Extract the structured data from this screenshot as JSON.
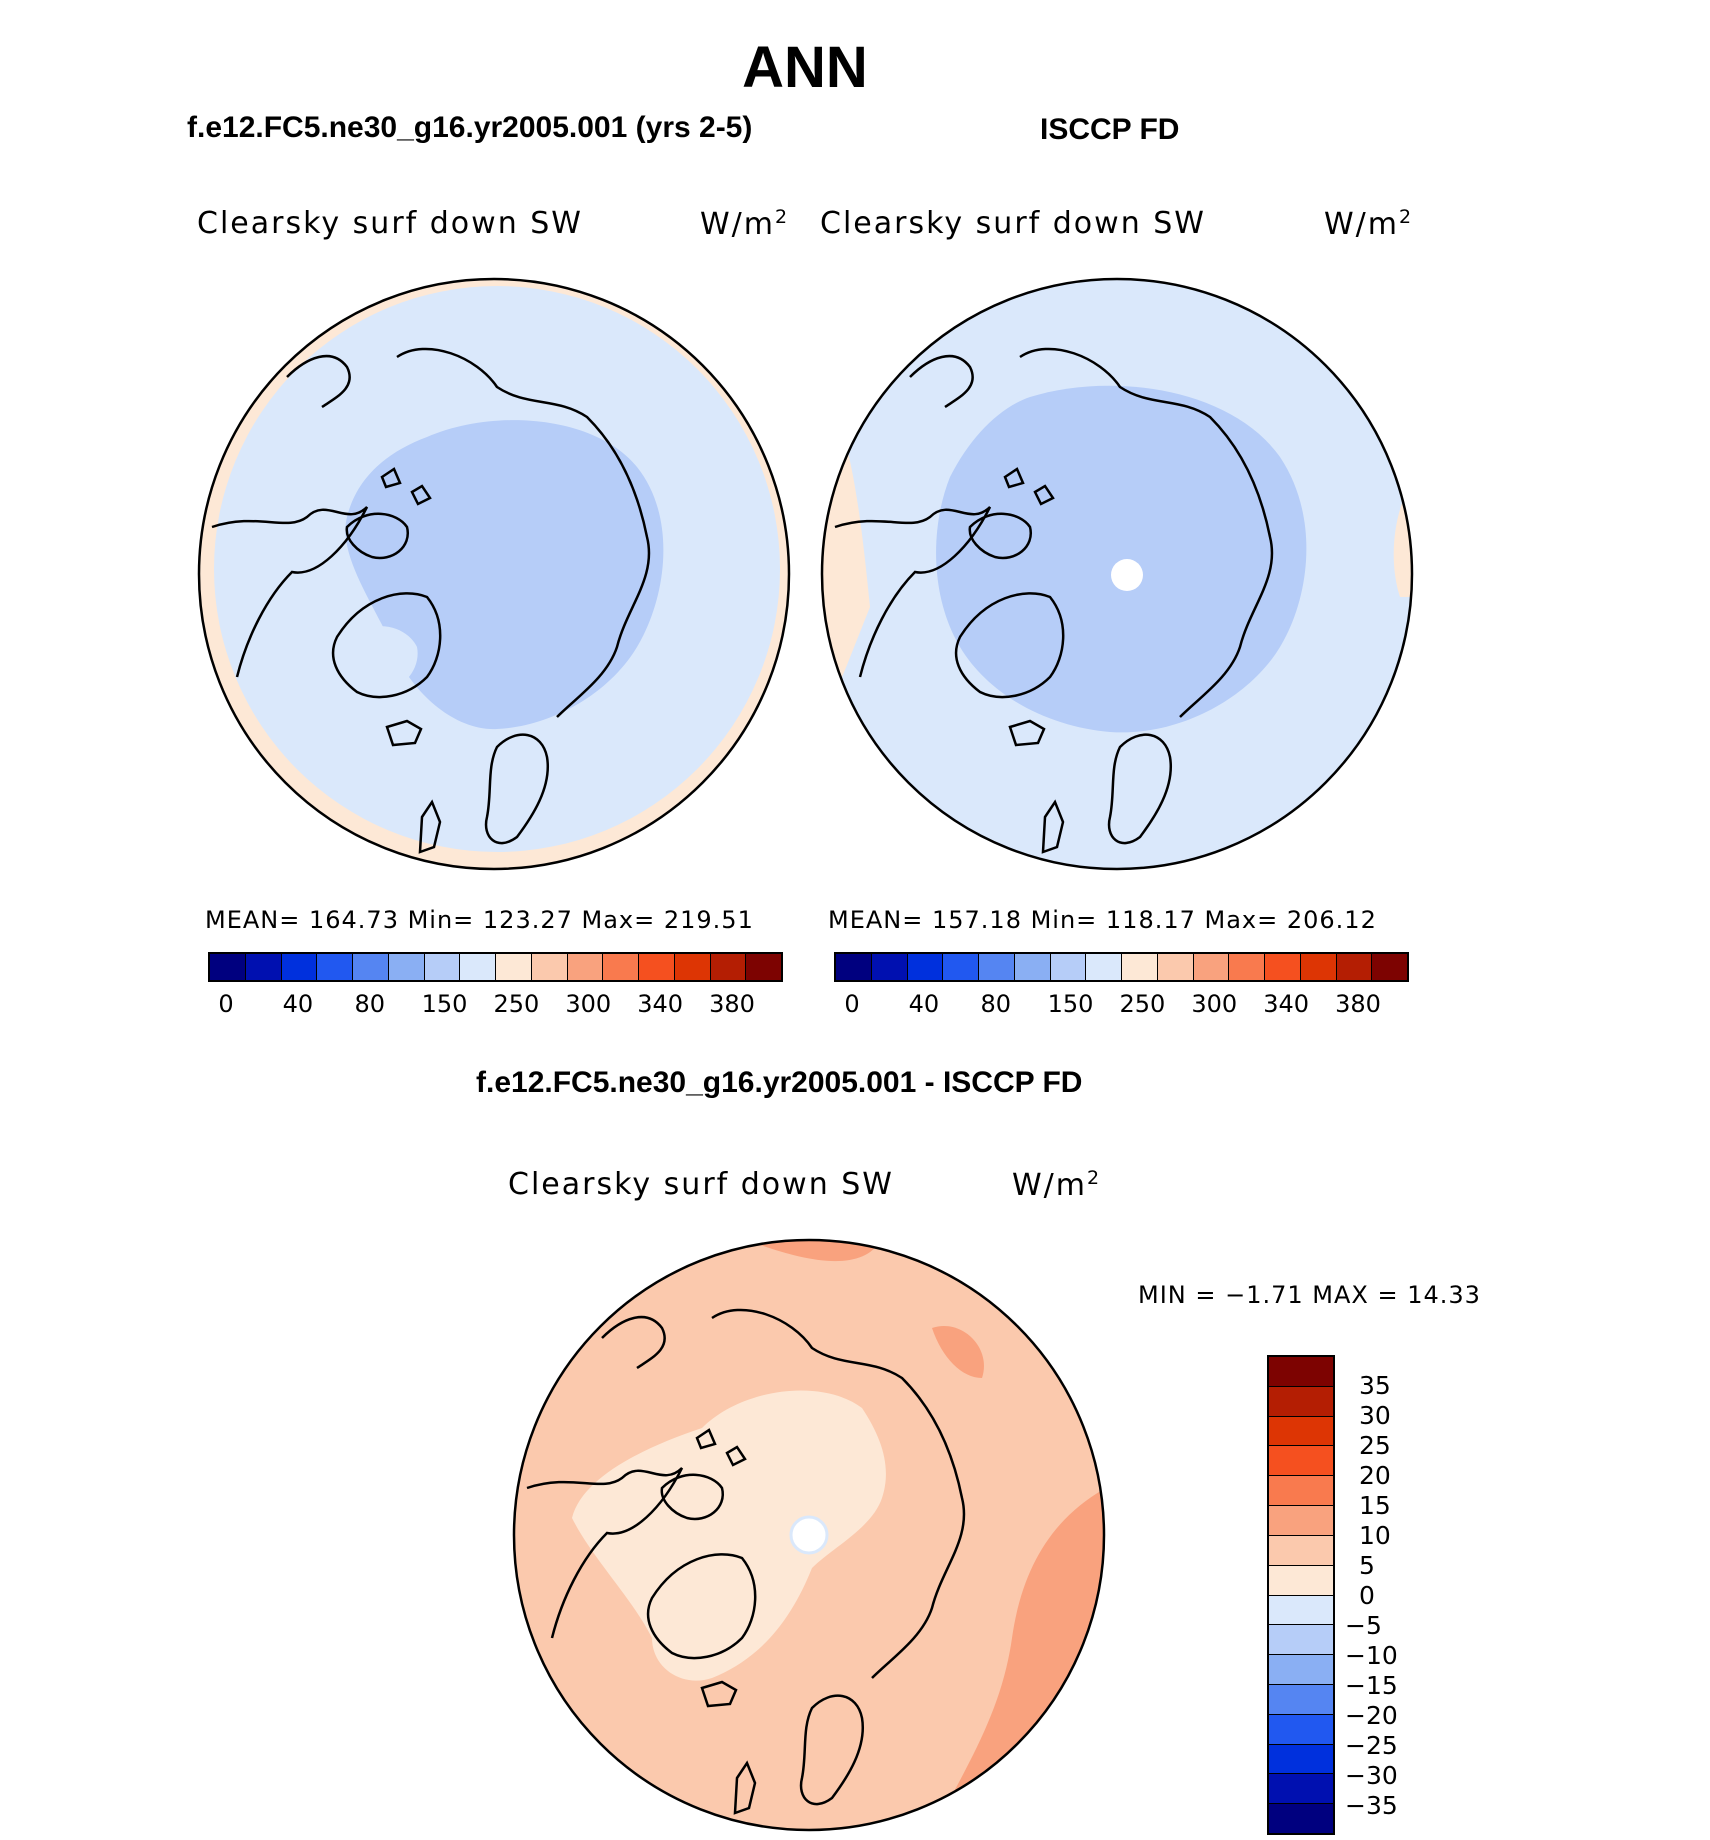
{
  "header": {
    "title": "ANN",
    "left_title": "f.e12.FC5.ne30_g16.yr2005.001 (yrs 2-5)",
    "right_title": "ISCCP FD",
    "diff_title": "f.e12.FC5.ne30_g16.yr2005.001 - ISCCP FD"
  },
  "panels": {
    "left": {
      "variable": "Clearsky surf down SW",
      "units_base": "W/m",
      "units_exp": "2",
      "stats": "MEAN= 164.73   Min= 123.27   Max= 219.51"
    },
    "right": {
      "variable": "Clearsky surf down SW",
      "units_base": "W/m",
      "units_exp": "2",
      "stats": "MEAN= 157.18   Min= 118.17   Max= 206.12"
    },
    "diff": {
      "variable": "Clearsky surf down SW",
      "units_base": "W/m",
      "units_exp": "2",
      "stats": "MIN =   −1.71  MAX =   14.33"
    }
  },
  "colorbar_top": {
    "colors": [
      "#00007f",
      "#0010b0",
      "#0030dd",
      "#2158f0",
      "#5585f2",
      "#8aaff3",
      "#b6cdf8",
      "#dae8fb",
      "#fde8d6",
      "#fbc9ad",
      "#f9a27e",
      "#f97a4e",
      "#f5501f",
      "#dd3504",
      "#b41e03",
      "#7d0301"
    ],
    "labels": [
      "0",
      "40",
      "80",
      "150",
      "250",
      "300",
      "340",
      "380"
    ]
  },
  "colorbar_diff": {
    "colors": [
      "#7d0301",
      "#b41e03",
      "#dd3504",
      "#f5501f",
      "#f97a4e",
      "#f9a27e",
      "#fbc9ad",
      "#fde8d6",
      "#dae8fb",
      "#b6cdf8",
      "#8aaff3",
      "#5585f2",
      "#2158f0",
      "#0030dd",
      "#0010b0",
      "#00007f"
    ],
    "labels": [
      "35",
      "30",
      "25",
      "20",
      "15",
      "10",
      "5",
      "0",
      "−5",
      "−10",
      "−15",
      "−20",
      "−25",
      "−30",
      "−35"
    ]
  },
  "map_colors": {
    "low": "#b6cdf8",
    "mid": "#dae8fb",
    "warm": "#fde8d6",
    "diff_mid": "#fbc9ad",
    "diff_high": "#f9a27e",
    "missing": "#ffffff"
  }
}
